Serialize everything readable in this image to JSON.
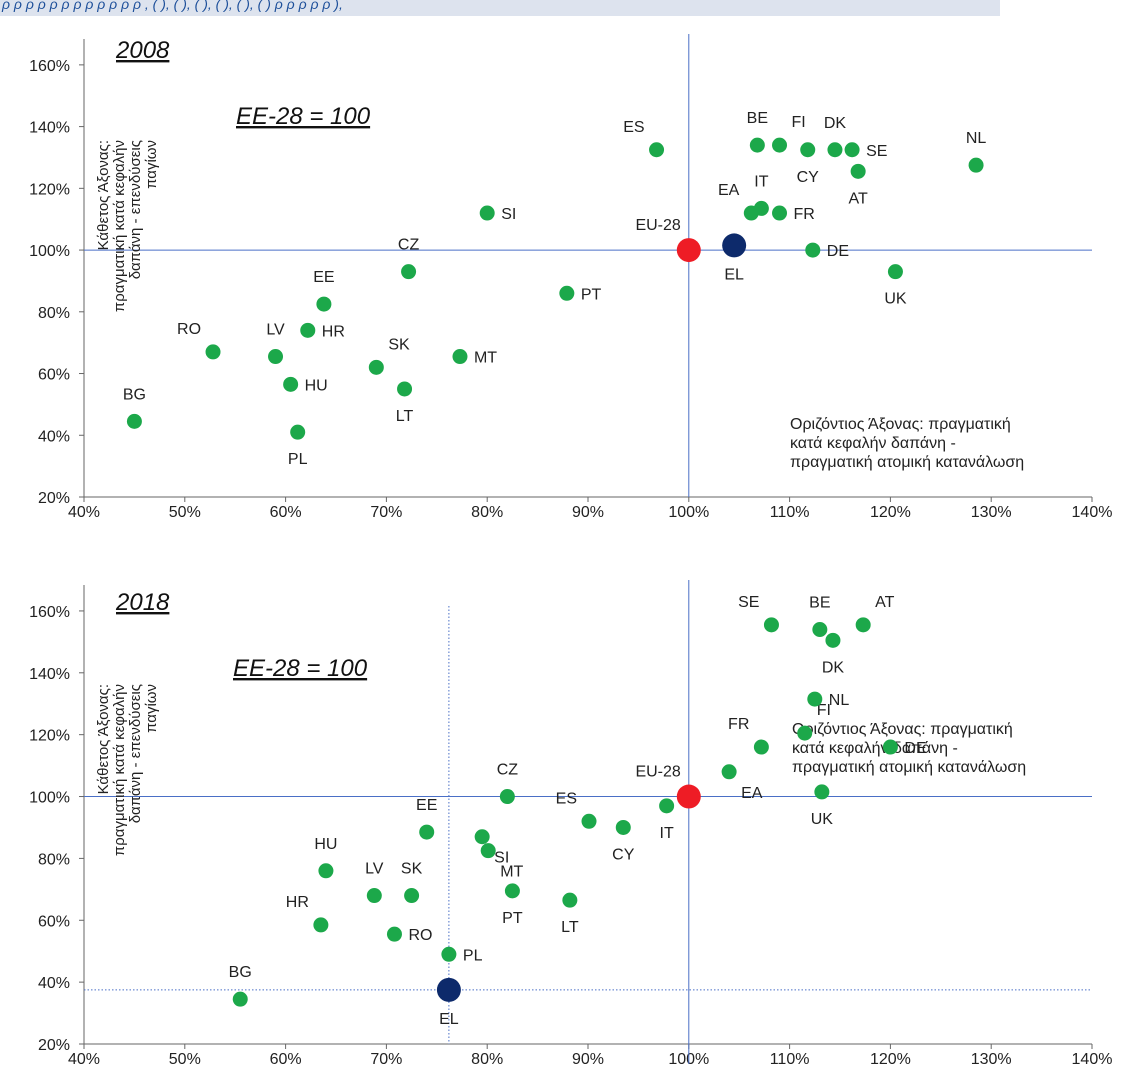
{
  "header_band_text": "ρ ρ ρ ρ ρ ρ ρ ρ ρ ρ ρ ρ , ( ), ( ), ( ), ( ), ( ), ( ) ρ ρ ρ ρ ρ ),",
  "chart_data": [
    {
      "type": "scatter",
      "title": "2008",
      "base_label": "ΕΕ-28 = 100",
      "xlabel": "Οριζόντιος Άξονας: πραγματική κατά κεφαλήν δαπάνη - πραγματική ατομική κατανάλωση",
      "ylabel": "Κάθετος Άξονας: πραγματική κατά κεφαλήν δαπάνη - επενδύσεις παγίων",
      "xlim": [
        40,
        140
      ],
      "ylim": [
        20,
        170
      ],
      "x_ticks": [
        "40%",
        "50%",
        "60%",
        "70%",
        "80%",
        "90%",
        "100%",
        "110%",
        "120%",
        "130%",
        "140%"
      ],
      "y_ticks": [
        "20%",
        "40%",
        "60%",
        "80%",
        "100%",
        "120%",
        "140%",
        "160%"
      ],
      "reference_lines": {
        "x": 100,
        "y": 100
      },
      "note_lines": [
        "Οριζόντιος Άξονας: πραγματική",
        "κατά κεφαλήν δαπάνη -",
        "πραγματική ατομική κατανάλωση"
      ],
      "ylabel_lines": [
        "Κάθετος Άξονας:",
        "πραγματική κατά κεφαλήν",
        "δαπάνη - επενδύσεις",
        "παγίων"
      ],
      "points": [
        {
          "code": "BG",
          "x": 45,
          "y": 44.5,
          "kind": "country",
          "lpos": "top"
        },
        {
          "code": "RO",
          "x": 52.8,
          "y": 67,
          "kind": "country",
          "lpos": "top-left"
        },
        {
          "code": "LV",
          "x": 59,
          "y": 65.5,
          "kind": "country",
          "lpos": "top"
        },
        {
          "code": "HU",
          "x": 60.5,
          "y": 56.5,
          "kind": "country",
          "lpos": "right"
        },
        {
          "code": "PL",
          "x": 61.2,
          "y": 41,
          "kind": "country",
          "lpos": "bottom"
        },
        {
          "code": "HR",
          "x": 62.2,
          "y": 74,
          "kind": "country",
          "lpos": "right"
        },
        {
          "code": "EE",
          "x": 63.8,
          "y": 82.5,
          "kind": "country",
          "lpos": "top"
        },
        {
          "code": "SK",
          "x": 69,
          "y": 62,
          "kind": "country",
          "lpos": "top-right"
        },
        {
          "code": "LT",
          "x": 71.8,
          "y": 55,
          "kind": "country",
          "lpos": "bottom"
        },
        {
          "code": "CZ",
          "x": 72.2,
          "y": 93,
          "kind": "country",
          "lpos": "top"
        },
        {
          "code": "MT",
          "x": 77.3,
          "y": 65.5,
          "kind": "country",
          "lpos": "right"
        },
        {
          "code": "SI",
          "x": 80,
          "y": 112,
          "kind": "country",
          "lpos": "right"
        },
        {
          "code": "PT",
          "x": 87.9,
          "y": 86,
          "kind": "country",
          "lpos": "right"
        },
        {
          "code": "ES",
          "x": 96.8,
          "y": 132.5,
          "kind": "country",
          "lpos": "top-left"
        },
        {
          "code": "EA",
          "x": 106.2,
          "y": 112,
          "kind": "country",
          "lpos": "top-left"
        },
        {
          "code": "IT",
          "x": 107.2,
          "y": 113.5,
          "kind": "country",
          "lpos": "top"
        },
        {
          "code": "FR",
          "x": 109,
          "y": 112,
          "kind": "country",
          "lpos": "right"
        },
        {
          "code": "BE",
          "x": 106.8,
          "y": 134,
          "kind": "country",
          "lpos": "top"
        },
        {
          "code": "FI",
          "x": 109,
          "y": 134,
          "kind": "country",
          "lpos": "top-right"
        },
        {
          "code": "CY",
          "x": 111.8,
          "y": 132.5,
          "kind": "country",
          "lpos": "bottom"
        },
        {
          "code": "DK",
          "x": 114.5,
          "y": 132.5,
          "kind": "country",
          "lpos": "top"
        },
        {
          "code": "SE",
          "x": 116.2,
          "y": 132.5,
          "kind": "country",
          "lpos": "right"
        },
        {
          "code": "AT",
          "x": 116.8,
          "y": 125.5,
          "kind": "country",
          "lpos": "bottom"
        },
        {
          "code": "DE",
          "x": 112.3,
          "y": 100,
          "kind": "country",
          "lpos": "right"
        },
        {
          "code": "UK",
          "x": 120.5,
          "y": 93,
          "kind": "country",
          "lpos": "bottom"
        },
        {
          "code": "NL",
          "x": 128.5,
          "y": 127.5,
          "kind": "country",
          "lpos": "top"
        },
        {
          "code": "EU-28",
          "x": 100,
          "y": 100,
          "kind": "eu",
          "lpos": "top-left"
        },
        {
          "code": "EL",
          "x": 104.5,
          "y": 101.5,
          "kind": "el",
          "lpos": "bottom"
        }
      ]
    },
    {
      "type": "scatter",
      "title": "2018",
      "base_label": "ΕΕ-28 = 100",
      "xlabel": "Οριζόντιος Άξονας: πραγματική κατά κεφαλήν δαπάνη - πραγματική ατομική κατανάλωση",
      "ylabel": "Κάθετος Άξονας: πραγματική κατά κεφαλήν δαπάνη - επενδύσεις παγίων",
      "xlim": [
        40,
        140
      ],
      "ylim": [
        20,
        170
      ],
      "x_ticks": [
        "40%",
        "50%",
        "60%",
        "70%",
        "80%",
        "90%",
        "100%",
        "110%",
        "120%",
        "130%",
        "140%"
      ],
      "y_ticks": [
        "20%",
        "40%",
        "60%",
        "80%",
        "100%",
        "120%",
        "140%",
        "160%"
      ],
      "reference_lines": {
        "x": 100,
        "y": 100
      },
      "el_guides": {
        "x": 76.2,
        "y": 37.5
      },
      "note_lines": [
        "Οριζόντιος Άξονας: πραγματική",
        "κατά κεφαλήν δαπάνη -",
        "πραγματική ατομική κατανάλωση"
      ],
      "ylabel_lines": [
        "Κάθετος Άξονας:",
        "πραγματική κατά κεφαλήν",
        "δαπάνη - επενδύσεις",
        "παγίων"
      ],
      "points": [
        {
          "code": "BG",
          "x": 55.5,
          "y": 34.5,
          "kind": "country",
          "lpos": "top"
        },
        {
          "code": "HR",
          "x": 63.5,
          "y": 58.5,
          "kind": "country",
          "lpos": "top-left"
        },
        {
          "code": "HU",
          "x": 64,
          "y": 76,
          "kind": "country",
          "lpos": "top"
        },
        {
          "code": "LV",
          "x": 68.8,
          "y": 68,
          "kind": "country",
          "lpos": "top"
        },
        {
          "code": "SK",
          "x": 72.5,
          "y": 68,
          "kind": "country",
          "lpos": "top"
        },
        {
          "code": "RO",
          "x": 70.8,
          "y": 55.5,
          "kind": "country",
          "lpos": "right"
        },
        {
          "code": "EE",
          "x": 74,
          "y": 88.5,
          "kind": "country",
          "lpos": "top"
        },
        {
          "code": "PL",
          "x": 76.2,
          "y": 49,
          "kind": "country",
          "lpos": "right"
        },
        {
          "code": "SI",
          "x": 79.5,
          "y": 87,
          "kind": "country",
          "lpos": "bottom-right"
        },
        {
          "code": "MT",
          "x": 80.1,
          "y": 82.5,
          "kind": "country",
          "lpos": "bottom-right"
        },
        {
          "code": "CZ",
          "x": 82,
          "y": 100,
          "kind": "country",
          "lpos": "top"
        },
        {
          "code": "PT",
          "x": 82.5,
          "y": 69.5,
          "kind": "country",
          "lpos": "bottom"
        },
        {
          "code": "LT",
          "x": 88.2,
          "y": 66.5,
          "kind": "country",
          "lpos": "bottom"
        },
        {
          "code": "ES",
          "x": 90.1,
          "y": 92,
          "kind": "country",
          "lpos": "top-left"
        },
        {
          "code": "CY",
          "x": 93.5,
          "y": 90,
          "kind": "country",
          "lpos": "bottom"
        },
        {
          "code": "IT",
          "x": 97.8,
          "y": 97,
          "kind": "country",
          "lpos": "bottom"
        },
        {
          "code": "EA",
          "x": 104,
          "y": 108,
          "kind": "country",
          "lpos": "bottom-right"
        },
        {
          "code": "FR",
          "x": 107.2,
          "y": 116,
          "kind": "country",
          "lpos": "top-left"
        },
        {
          "code": "FI",
          "x": 111.5,
          "y": 120.5,
          "kind": "country",
          "lpos": "top-right"
        },
        {
          "code": "NL",
          "x": 112.5,
          "y": 131.5,
          "kind": "country",
          "lpos": "right"
        },
        {
          "code": "UK",
          "x": 113.2,
          "y": 101.5,
          "kind": "country",
          "lpos": "bottom"
        },
        {
          "code": "SE",
          "x": 108.2,
          "y": 155.5,
          "kind": "country",
          "lpos": "top-left"
        },
        {
          "code": "BE",
          "x": 113,
          "y": 154,
          "kind": "country",
          "lpos": "top"
        },
        {
          "code": "DK",
          "x": 114.3,
          "y": 150.5,
          "kind": "country",
          "lpos": "bottom"
        },
        {
          "code": "AT",
          "x": 117.3,
          "y": 155.5,
          "kind": "country",
          "lpos": "top-right"
        },
        {
          "code": "DE",
          "x": 120,
          "y": 116,
          "kind": "country",
          "lpos": "right"
        },
        {
          "code": "EU-28",
          "x": 100,
          "y": 100,
          "kind": "eu",
          "lpos": "top-left"
        },
        {
          "code": "EL",
          "x": 76.2,
          "y": 37.5,
          "kind": "el",
          "lpos": "bottom"
        }
      ]
    }
  ],
  "colors": {
    "country": "#1ca84a",
    "eu": "#ee1c25",
    "el": "#0d2a6b",
    "axis_line": "#4a6fc6",
    "text": "#222222"
  }
}
